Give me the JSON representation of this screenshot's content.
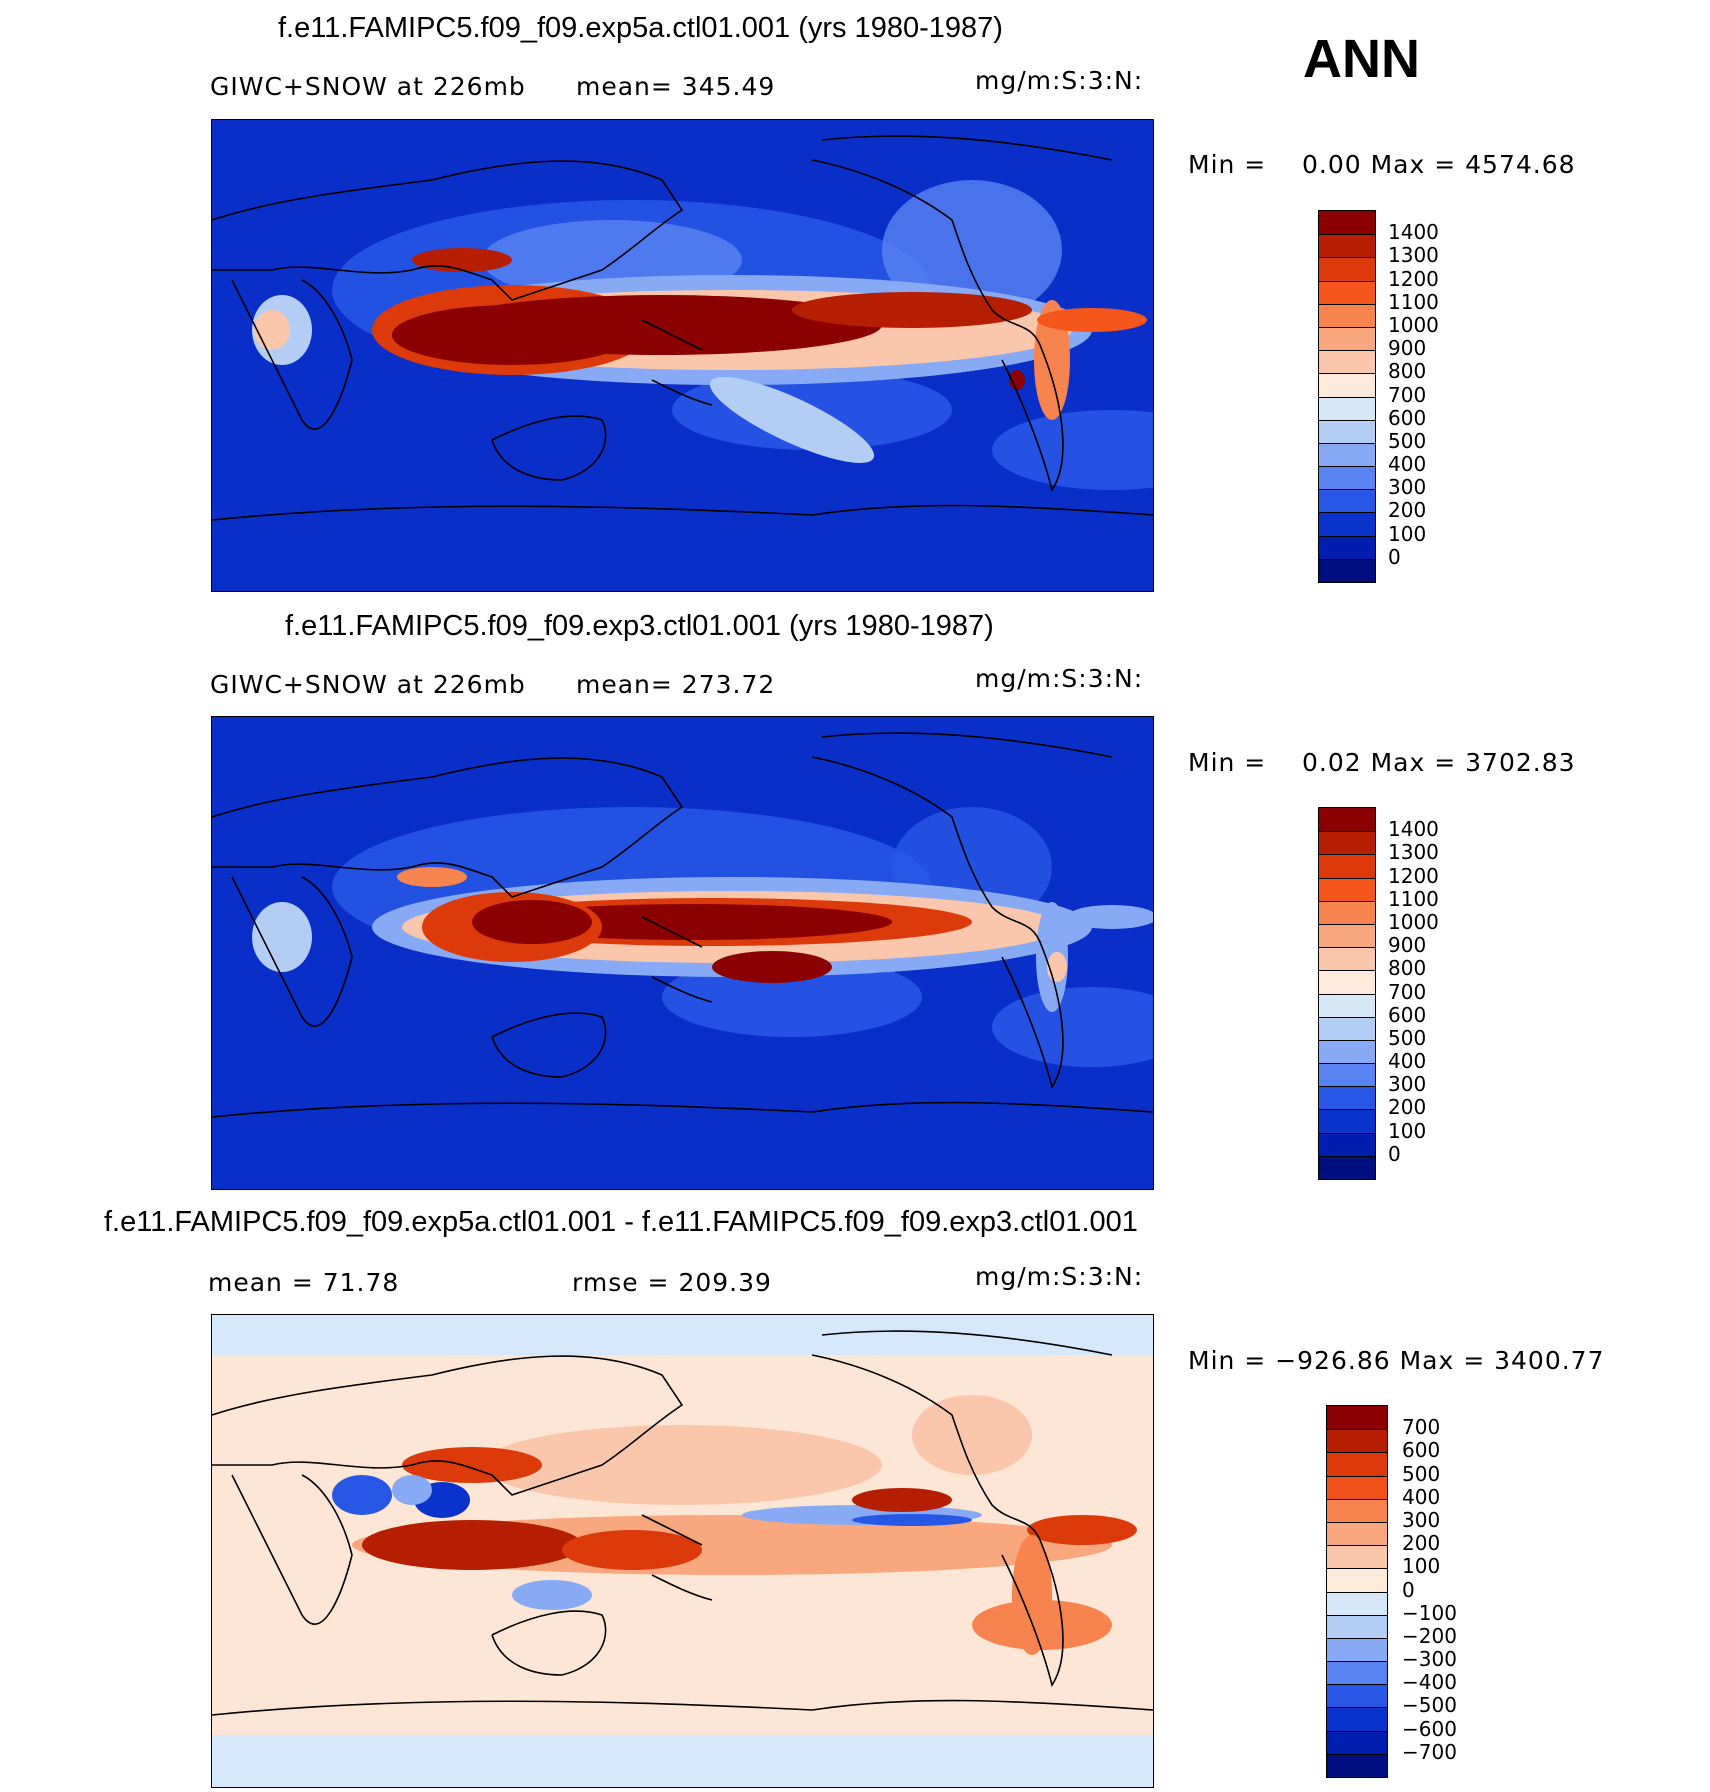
{
  "season": "ANN",
  "panels": [
    {
      "title": "f.e11.FAMIPC5.f09_f09.exp5a.ctl01.001 (yrs 1980-1987)",
      "variable": "GIWC+SNOW at 226mb",
      "stat": "mean= 345.49",
      "units": "mg/m:S:3:N:",
      "minmax_label": "Min =",
      "minmax_value": "0.00 Max = 4574.68",
      "levels": [
        "1400",
        "1300",
        "1200",
        "1100",
        "1000",
        "900",
        "800",
        "700",
        "600",
        "500",
        "400",
        "300",
        "200",
        "100",
        "0"
      ],
      "colors": [
        "#8b0000",
        "#b51e00",
        "#dc3a0b",
        "#f5561b",
        "#f7834e",
        "#f8a77f",
        "#fbc7ac",
        "#fdeadb",
        "#d6e8f7",
        "#b3cdf5",
        "#88aaf4",
        "#5a83f2",
        "#2857e6",
        "#0a33cc",
        "#001eae",
        "#000f80"
      ]
    },
    {
      "title": "f.e11.FAMIPC5.f09_f09.exp3.ctl01.001 (yrs 1980-1987)",
      "variable": "GIWC+SNOW at 226mb",
      "stat": "mean= 273.72",
      "units": "mg/m:S:3:N:",
      "minmax_label": "Min =",
      "minmax_value": "0.02 Max = 3702.83",
      "levels": [
        "1400",
        "1300",
        "1200",
        "1100",
        "1000",
        "900",
        "800",
        "700",
        "600",
        "500",
        "400",
        "300",
        "200",
        "100",
        "0"
      ],
      "colors": [
        "#8b0000",
        "#b51e00",
        "#dc3a0b",
        "#f5561b",
        "#f7834e",
        "#f8a77f",
        "#fbc7ac",
        "#fdeadb",
        "#d6e8f7",
        "#b3cdf5",
        "#88aaf4",
        "#5a83f2",
        "#2857e6",
        "#0a33cc",
        "#001eae",
        "#000f80"
      ]
    },
    {
      "title": "f.e11.FAMIPC5.f09_f09.exp5a.ctl01.001 - f.e11.FAMIPC5.f09_f09.exp3.ctl01.001",
      "variable": "mean =   71.78",
      "stat": "rmse = 209.39",
      "units": "mg/m:S:3:N:",
      "minmax_label": "Min = −926.86 Max = 3400.77",
      "minmax_value": "",
      "levels": [
        "700",
        "600",
        "500",
        "400",
        "300",
        "200",
        "100",
        "0",
        "−100",
        "−200",
        "−300",
        "−400",
        "−500",
        "−600",
        "−700"
      ],
      "colors": [
        "#8b0000",
        "#b51e00",
        "#dc3a0b",
        "#f0501a",
        "#f7834e",
        "#f8a77f",
        "#fbc7ac",
        "#fdeadb",
        "#d6e8f7",
        "#b3cdf5",
        "#88aaf4",
        "#5a83f2",
        "#2857e6",
        "#0a33cc",
        "#001eae",
        "#000f80"
      ]
    }
  ],
  "map_colors": {
    "background_abs": "#0a2ec8",
    "background_diff": "#d6e8fb",
    "diff_ocean_warm": "#fde6d5"
  }
}
